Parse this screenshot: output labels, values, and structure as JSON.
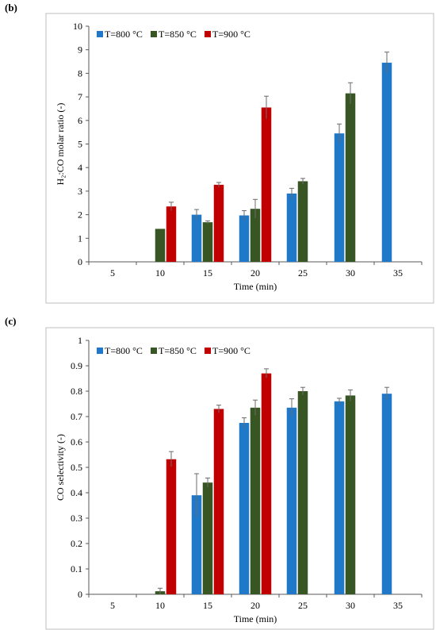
{
  "colors": {
    "800": "#1F78C8",
    "850": "#375623",
    "900": "#C00000",
    "error_bar": "#6b6b6b",
    "frame": "#bfbfbf"
  },
  "charts": [
    {
      "panel_label": "(b)",
      "type": "bar",
      "categories": [
        "5",
        "10",
        "15",
        "20",
        "25",
        "30",
        "35"
      ],
      "xlabel": "Time (min)",
      "ylabel": "H₂:CO molar ratio (-)",
      "ylim": [
        0,
        10
      ],
      "yticks": [
        "0",
        "1",
        "2",
        "3",
        "4",
        "5",
        "6",
        "7",
        "8",
        "9",
        "10"
      ],
      "tick_values": [
        0,
        1,
        2,
        3,
        4,
        5,
        6,
        7,
        8,
        9,
        10
      ],
      "grid": false,
      "legend_position": "top-left",
      "series": [
        {
          "name": "T=800 °C",
          "values": [
            null,
            null,
            2.0,
            1.97,
            2.9,
            5.45,
            8.45
          ],
          "errors": [
            null,
            null,
            0.22,
            0.2,
            0.22,
            0.4,
            0.45
          ]
        },
        {
          "name": "T=850 °C",
          "values": [
            null,
            1.4,
            1.68,
            2.25,
            3.42,
            7.15,
            null
          ],
          "errors": [
            null,
            null,
            0.06,
            0.4,
            0.12,
            0.45,
            null
          ]
        },
        {
          "name": "T=900 °C",
          "values": [
            null,
            2.35,
            3.27,
            6.55,
            null,
            null,
            null
          ],
          "errors": [
            null,
            0.18,
            0.1,
            0.48,
            null,
            null,
            null
          ]
        }
      ]
    },
    {
      "panel_label": "(c)",
      "type": "bar",
      "categories": [
        "5",
        "10",
        "15",
        "20",
        "25",
        "30",
        "35"
      ],
      "xlabel": "Time (min)",
      "ylabel": "CO selectivity (-)",
      "ylim": [
        0,
        1
      ],
      "yticks": [
        "0",
        "0.1",
        "0.2",
        "0.3",
        "0.4",
        "0.5",
        "0.6",
        "0.7",
        "0.8",
        "0.9",
        "1"
      ],
      "tick_values": [
        0,
        0.1,
        0.2,
        0.3,
        0.4,
        0.5,
        0.6,
        0.7,
        0.8,
        0.9,
        1
      ],
      "grid": false,
      "legend_position": "top-left",
      "series": [
        {
          "name": "T=800 °C",
          "values": [
            null,
            null,
            0.39,
            0.675,
            0.735,
            0.76,
            0.79
          ],
          "errors": [
            null,
            null,
            0.085,
            0.02,
            0.035,
            0.012,
            0.025
          ]
        },
        {
          "name": "T=850 °C",
          "values": [
            null,
            0.012,
            0.44,
            0.735,
            0.8,
            0.783,
            null
          ],
          "errors": [
            null,
            0.012,
            0.018,
            0.03,
            0.015,
            0.022,
            null
          ]
        },
        {
          "name": "T=900 °C",
          "values": [
            null,
            0.532,
            0.73,
            0.87,
            null,
            null,
            null
          ],
          "errors": [
            null,
            0.03,
            0.015,
            0.018,
            null,
            null,
            null
          ]
        }
      ]
    }
  ]
}
